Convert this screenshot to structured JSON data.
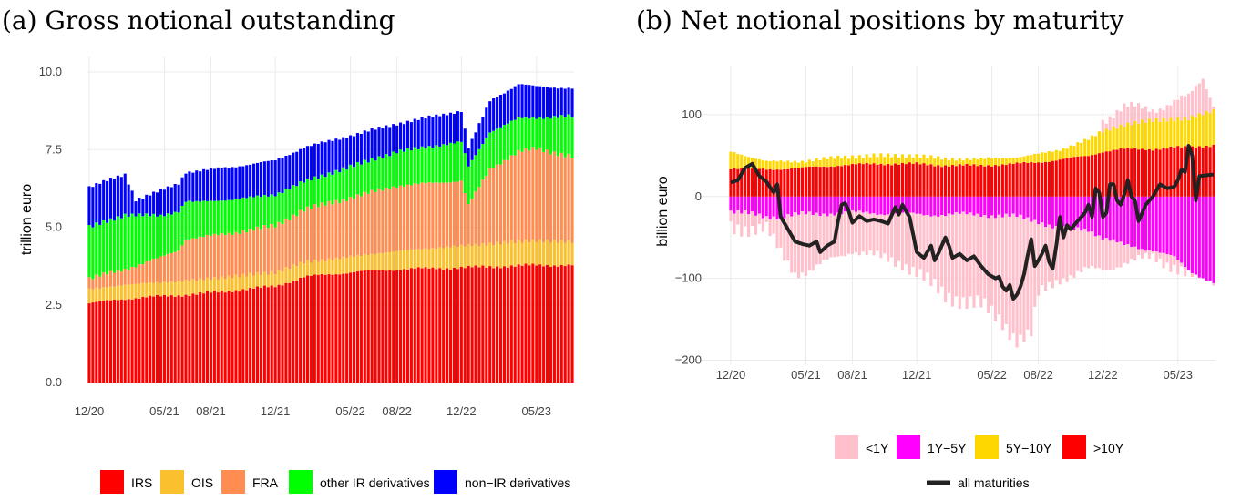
{
  "chart_data": [
    {
      "type": "bar",
      "stacked": true,
      "title": "(a) Gross notional outstanding",
      "xlabel": "",
      "ylabel": "trillion euro",
      "ylim": [
        0,
        10.5
      ],
      "yticks": [
        "0.0",
        "2.5",
        "5.0",
        "7.5",
        "10.0"
      ],
      "ytick_values": [
        0,
        2.5,
        5,
        7.5,
        10
      ],
      "xticks": [
        {
          "label": "12/20",
          "index": 0
        },
        {
          "label": "05/21",
          "index": 21
        },
        {
          "label": "08/21",
          "index": 34
        },
        {
          "label": "12/21",
          "index": 52
        },
        {
          "label": "05/22",
          "index": 73
        },
        {
          "label": "08/22",
          "index": 86
        },
        {
          "label": "12/22",
          "index": 104
        },
        {
          "label": "05/23",
          "index": 125
        }
      ],
      "n_bars": 136,
      "series": [
        {
          "name": "IRS",
          "color": "#ff0000",
          "anchors": [
            [
              0,
              2.55
            ],
            [
              10,
              2.7
            ],
            [
              30,
              2.85
            ],
            [
              52,
              3.1
            ],
            [
              60,
              3.4
            ],
            [
              73,
              3.55
            ],
            [
              86,
              3.65
            ],
            [
              104,
              3.7
            ],
            [
              125,
              3.78
            ],
            [
              135,
              3.78
            ]
          ]
        },
        {
          "name": "OIS",
          "color": "#fbc02d",
          "anchors": [
            [
              0,
              0.45
            ],
            [
              30,
              0.45
            ],
            [
              52,
              0.45
            ],
            [
              73,
              0.5
            ],
            [
              104,
              0.7
            ],
            [
              125,
              0.8
            ],
            [
              135,
              0.75
            ]
          ]
        },
        {
          "name": "FRA",
          "color": "#ff8c50",
          "anchors": [
            [
              0,
              0.35
            ],
            [
              10,
              0.5
            ],
            [
              20,
              0.8
            ],
            [
              25,
              1.0
            ],
            [
              27,
              1.35
            ],
            [
              40,
              1.4
            ],
            [
              52,
              1.5
            ],
            [
              60,
              1.7
            ],
            [
              73,
              1.9
            ],
            [
              86,
              2.1
            ],
            [
              104,
              2.1
            ],
            [
              106,
              1.3
            ],
            [
              112,
              2.4
            ],
            [
              120,
              2.9
            ],
            [
              125,
              2.95
            ],
            [
              135,
              2.75
            ]
          ]
        },
        {
          "name": "other IR derivatives",
          "color": "#00ff00",
          "anchors": [
            [
              0,
              1.65
            ],
            [
              10,
              1.75
            ],
            [
              20,
              1.35
            ],
            [
              30,
              1.15
            ],
            [
              52,
              1.0
            ],
            [
              60,
              0.9
            ],
            [
              73,
              1.0
            ],
            [
              86,
              1.1
            ],
            [
              104,
              1.25
            ],
            [
              112,
              1.2
            ],
            [
              125,
              1.0
            ],
            [
              135,
              1.3
            ]
          ]
        },
        {
          "name": "non-IR derivatives",
          "color": "#0000ff",
          "anchors": [
            [
              0,
              1.3
            ],
            [
              10,
              1.3
            ],
            [
              13,
              0.5
            ],
            [
              20,
              0.8
            ],
            [
              30,
              1.0
            ],
            [
              52,
              1.1
            ],
            [
              60,
              1.1
            ],
            [
              73,
              1.0
            ],
            [
              86,
              0.9
            ],
            [
              104,
              1.0
            ],
            [
              106,
              0.6
            ],
            [
              112,
              1.0
            ],
            [
              120,
              1.1
            ],
            [
              125,
              1.0
            ],
            [
              135,
              0.9
            ]
          ]
        }
      ]
    },
    {
      "type": "bar+line",
      "stacked": "diverging",
      "title": "(b) Net notional positions by maturity",
      "xlabel": "",
      "ylabel": "billion euro",
      "ylim": [
        -205,
        160
      ],
      "yticks": [
        "−200",
        "−100",
        "0",
        "100"
      ],
      "ytick_values": [
        -200,
        -100,
        0,
        100
      ],
      "xticks": [
        {
          "label": "12/20",
          "index": 0
        },
        {
          "label": "05/21",
          "index": 21
        },
        {
          "label": "08/21",
          "index": 34
        },
        {
          "label": "12/21",
          "index": 52
        },
        {
          "label": "05/22",
          "index": 73
        },
        {
          "label": "08/22",
          "index": 86
        },
        {
          "label": "12/22",
          "index": 104
        },
        {
          "label": "05/23",
          "index": 125
        }
      ],
      "n_bars": 136,
      "series": [
        {
          "name": "<1Y",
          "color": "#ffc0cb",
          "anchors": [
            [
              0,
              -20
            ],
            [
              10,
              -15
            ],
            [
              14,
              -45
            ],
            [
              18,
              -70
            ],
            [
              22,
              -70
            ],
            [
              34,
              -45
            ],
            [
              42,
              -55
            ],
            [
              48,
              -60
            ],
            [
              52,
              -70
            ],
            [
              60,
              -100
            ],
            [
              70,
              -110
            ],
            [
              76,
              -130
            ],
            [
              80,
              -150
            ],
            [
              84,
              -140
            ],
            [
              86,
              -90
            ],
            [
              92,
              -60
            ],
            [
              100,
              -50
            ],
            [
              104,
              -40
            ],
            [
              110,
              -20
            ],
            [
              118,
              -10
            ],
            [
              124,
              -10
            ],
            [
              128,
              -5
            ],
            [
              135,
              5
            ]
          ],
          "positive_tail": [
            [
              104,
              15
            ],
            [
              110,
              20
            ],
            [
              118,
              15
            ],
            [
              124,
              20
            ],
            [
              128,
              25
            ],
            [
              132,
              45
            ],
            [
              135,
              10
            ]
          ]
        },
        {
          "name": "1Y−5Y",
          "color": "#ff00ff",
          "anchors": [
            [
              0,
              -18
            ],
            [
              10,
              -25
            ],
            [
              20,
              -22
            ],
            [
              30,
              -20
            ],
            [
              40,
              -20
            ],
            [
              52,
              -22
            ],
            [
              60,
              -22
            ],
            [
              70,
              -22
            ],
            [
              80,
              -25
            ],
            [
              86,
              -30
            ],
            [
              92,
              -40
            ],
            [
              100,
              -40
            ],
            [
              104,
              -50
            ],
            [
              110,
              -60
            ],
            [
              118,
              -65
            ],
            [
              124,
              -75
            ],
            [
              128,
              -90
            ],
            [
              135,
              -105
            ]
          ]
        },
        {
          "name": "5Y−10Y",
          "color": "#ffd700",
          "anchors": [
            [
              0,
              20
            ],
            [
              10,
              10
            ],
            [
              20,
              8
            ],
            [
              30,
              10
            ],
            [
              40,
              10
            ],
            [
              52,
              10
            ],
            [
              60,
              8
            ],
            [
              70,
              8
            ],
            [
              80,
              8
            ],
            [
              86,
              10
            ],
            [
              92,
              12
            ],
            [
              100,
              20
            ],
            [
              104,
              25
            ],
            [
              110,
              30
            ],
            [
              118,
              35
            ],
            [
              124,
              35
            ],
            [
              128,
              35
            ],
            [
              135,
              42
            ]
          ]
        },
        {
          "name": ">10Y",
          "color": "#ff0000",
          "anchors": [
            [
              0,
              35
            ],
            [
              10,
              33
            ],
            [
              20,
              35
            ],
            [
              30,
              38
            ],
            [
              40,
              40
            ],
            [
              52,
              40
            ],
            [
              60,
              38
            ],
            [
              70,
              38
            ],
            [
              80,
              40
            ],
            [
              86,
              42
            ],
            [
              92,
              45
            ],
            [
              100,
              50
            ],
            [
              104,
              55
            ],
            [
              110,
              58
            ],
            [
              118,
              58
            ],
            [
              124,
              60
            ],
            [
              128,
              60
            ],
            [
              135,
              63
            ]
          ]
        },
        {
          "name": "all maturities",
          "type": "line",
          "color": "#222222",
          "values_anchors": [
            [
              0,
              17
            ],
            [
              2,
              20
            ],
            [
              4,
              35
            ],
            [
              6,
              40
            ],
            [
              8,
              25
            ],
            [
              10,
              18
            ],
            [
              12,
              5
            ],
            [
              13,
              15
            ],
            [
              14,
              -25
            ],
            [
              16,
              -40
            ],
            [
              18,
              -55
            ],
            [
              20,
              -58
            ],
            [
              22,
              -60
            ],
            [
              24,
              -55
            ],
            [
              25,
              -68
            ],
            [
              27,
              -60
            ],
            [
              29,
              -55
            ],
            [
              30,
              -30
            ],
            [
              31,
              -10
            ],
            [
              32,
              -8
            ],
            [
              33,
              -18
            ],
            [
              34,
              -32
            ],
            [
              36,
              -24
            ],
            [
              38,
              -30
            ],
            [
              40,
              -28
            ],
            [
              42,
              -30
            ],
            [
              44,
              -33
            ],
            [
              46,
              -13
            ],
            [
              47,
              -22
            ],
            [
              48,
              -10
            ],
            [
              49,
              -18
            ],
            [
              50,
              -25
            ],
            [
              52,
              -68
            ],
            [
              54,
              -75
            ],
            [
              56,
              -60
            ],
            [
              57,
              -78
            ],
            [
              58,
              -70
            ],
            [
              60,
              -50
            ],
            [
              61,
              -60
            ],
            [
              62,
              -75
            ],
            [
              64,
              -70
            ],
            [
              66,
              -78
            ],
            [
              68,
              -73
            ],
            [
              70,
              -85
            ],
            [
              72,
              -95
            ],
            [
              74,
              -100
            ],
            [
              75,
              -98
            ],
            [
              76,
              -110
            ],
            [
              77,
              -115
            ],
            [
              78,
              -108
            ],
            [
              79,
              -125
            ],
            [
              80,
              -120
            ],
            [
              81,
              -110
            ],
            [
              82,
              -95
            ],
            [
              83,
              -72
            ],
            [
              84,
              -52
            ],
            [
              85,
              -85
            ],
            [
              86,
              -78
            ],
            [
              87,
              -70
            ],
            [
              88,
              -60
            ],
            [
              89,
              -80
            ],
            [
              90,
              -88
            ],
            [
              91,
              -60
            ],
            [
              92,
              -25
            ],
            [
              93,
              -50
            ],
            [
              94,
              -35
            ],
            [
              95,
              -40
            ],
            [
              96,
              -35
            ],
            [
              97,
              -30
            ],
            [
              98,
              -25
            ],
            [
              99,
              -20
            ],
            [
              100,
              -10
            ],
            [
              101,
              -25
            ],
            [
              102,
              10
            ],
            [
              103,
              5
            ],
            [
              104,
              -25
            ],
            [
              105,
              -20
            ],
            [
              106,
              15
            ],
            [
              107,
              15
            ],
            [
              108,
              -5
            ],
            [
              109,
              -10
            ],
            [
              110,
              2
            ],
            [
              111,
              20
            ],
            [
              112,
              0
            ],
            [
              113,
              -5
            ],
            [
              114,
              -30
            ],
            [
              115,
              -20
            ],
            [
              116,
              -10
            ],
            [
              118,
              0
            ],
            [
              120,
              15
            ],
            [
              122,
              10
            ],
            [
              124,
              12
            ],
            [
              125,
              20
            ],
            [
              126,
              33
            ],
            [
              127,
              30
            ],
            [
              128,
              62
            ],
            [
              129,
              50
            ],
            [
              130,
              -5
            ],
            [
              131,
              25
            ],
            [
              135,
              27
            ]
          ]
        }
      ]
    }
  ],
  "legend_a": [
    {
      "label": "IRS",
      "color": "#ff0000"
    },
    {
      "label": "OIS",
      "color": "#fbc02d"
    },
    {
      "label": "FRA",
      "color": "#ff8c50"
    },
    {
      "label": "other IR derivatives",
      "color": "#00ff00"
    },
    {
      "label": "non−IR derivatives",
      "color": "#0000ff"
    }
  ],
  "legend_b": [
    {
      "label": "<1Y",
      "color": "#ffc0cb"
    },
    {
      "label": "1Y−5Y",
      "color": "#ff00ff"
    },
    {
      "label": "5Y−10Y",
      "color": "#ffd700"
    },
    {
      "label": ">10Y",
      "color": "#ff0000"
    }
  ],
  "legend_b_line": {
    "label": "all maturities",
    "color": "#222222"
  }
}
